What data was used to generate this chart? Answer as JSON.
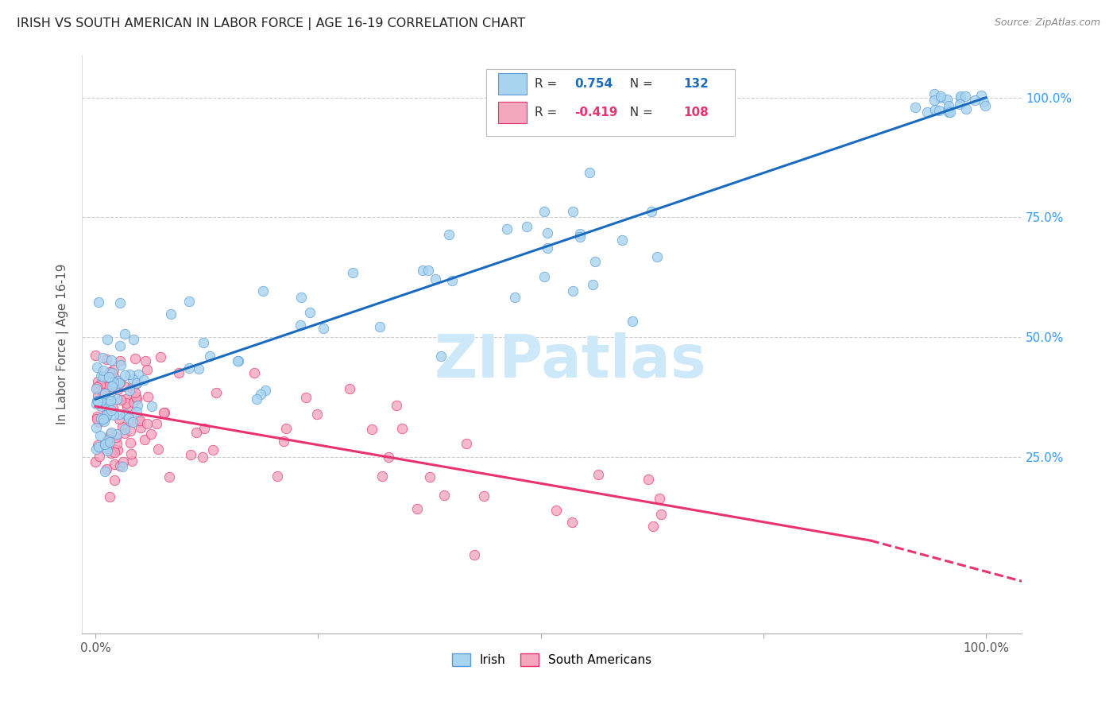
{
  "title": "IRISH VS SOUTH AMERICAN IN LABOR FORCE | AGE 16-19 CORRELATION CHART",
  "source": "Source: ZipAtlas.com",
  "ylabel": "In Labor Force | Age 16-19",
  "legend_irish_r": "0.754",
  "legend_irish_n": "132",
  "legend_sa_r": "-0.419",
  "legend_sa_n": "108",
  "legend_label_irish": "Irish",
  "legend_label_sa": "South Americans",
  "color_irish_fill": "#a8d4f0",
  "color_irish_edge": "#5b9bd5",
  "color_sa_fill": "#f4a8c0",
  "color_sa_edge": "#e8336e",
  "color_irish_line": "#1a6bbf",
  "color_sa_line": "#e8336e",
  "color_irish_text": "#1a6bbf",
  "color_sa_text": "#e8336e",
  "watermark_color": "#cde8f8",
  "grid_color": "#cccccc",
  "ytick_color": "#3399ff",
  "xtick_color": "#555555"
}
